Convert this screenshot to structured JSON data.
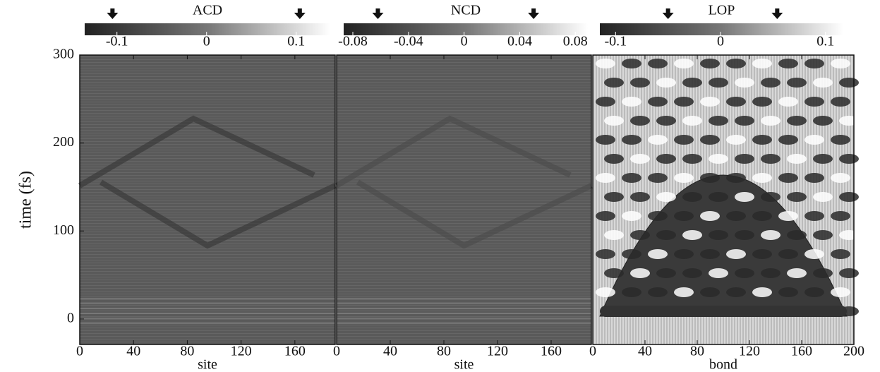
{
  "chart_data": [
    {
      "type": "heatmap",
      "title": "ACD",
      "xlabel": "site",
      "ylabel": "time (fs)",
      "xlim": [
        0,
        190
      ],
      "xticks": [
        0,
        40,
        80,
        120,
        160
      ],
      "ylim": [
        -29,
        300
      ],
      "yticks": [
        0,
        100,
        200,
        300
      ],
      "colorbar_lim": [
        -0.136,
        0.138
      ],
      "colorbar_ticks": [
        -0.1,
        0,
        0.1
      ],
      "markers": [
        -0.105,
        0.104
      ]
    },
    {
      "type": "heatmap",
      "title": "NCD",
      "xlabel": "site",
      "xlim": [
        0,
        190
      ],
      "xticks": [
        0,
        40,
        80,
        120,
        160
      ],
      "ylim": [
        -29,
        300
      ],
      "colorbar_lim": [
        -0.0866,
        0.089
      ],
      "colorbar_ticks": [
        -0.08,
        -0.04,
        0,
        0.04,
        0.08
      ],
      "markers": [
        -0.062,
        0.05
      ]
    },
    {
      "type": "heatmap",
      "title": "LOP",
      "xlabel": "bond",
      "xlim": [
        0,
        200
      ],
      "xticks": [
        0,
        40,
        80,
        120,
        160,
        200
      ],
      "ylim": [
        -29,
        300
      ],
      "colorbar_lim": [
        -0.115,
        0.117
      ],
      "colorbar_ticks": [
        -0.1,
        0,
        0.1
      ],
      "markers": [
        -0.05,
        0.054
      ]
    }
  ]
}
